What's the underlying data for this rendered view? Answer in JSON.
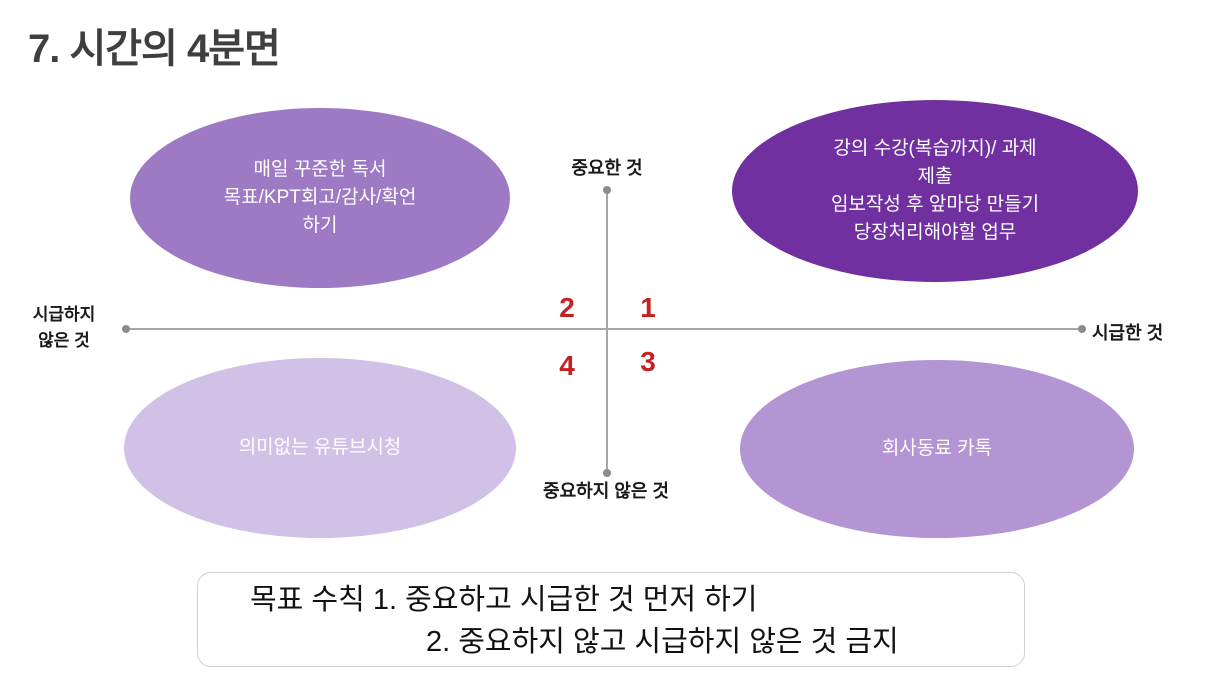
{
  "slide": {
    "title": "7. 시간의 4분면"
  },
  "axes": {
    "top_label": "중요한 것",
    "bottom_label": "중요하지 않은 것",
    "left_label_line1": "시급하지",
    "left_label_line2": "않은 것",
    "right_label": "시급한 것"
  },
  "quadrants": {
    "q1": {
      "number": "1",
      "lines": [
        "강의 수강(복습까지)/ 과제",
        "제출",
        "임보작성 후 앞마당 만들기",
        "당장처리해야할 업무"
      ]
    },
    "q2": {
      "number": "2",
      "lines": [
        "매일 꾸준한 독서",
        "목표/KPT회고/감사/확언",
        "하기"
      ]
    },
    "q3": {
      "number": "3",
      "lines": [
        "회사동료 카톡"
      ]
    },
    "q4": {
      "number": "4",
      "lines": [
        "의미없는 유튜브시청"
      ]
    }
  },
  "rules_box": {
    "line1": "목표 수칙 1. 중요하고 시급한 것 먼저 하기",
    "line2": "2. 중요하지 않고 시급하지 않은 것 금지"
  },
  "colors": {
    "q1_fill": "#7030a0",
    "q2_fill": "#9e7ac4",
    "q3_fill": "#b295d2",
    "q4_fill": "#d2c1e6",
    "number_red": "#c42222",
    "axis_line": "#a6a6a6",
    "axis_dot": "#8c8c8c",
    "title_gray": "#3f3f3f",
    "box_border": "#d0d0d0"
  }
}
